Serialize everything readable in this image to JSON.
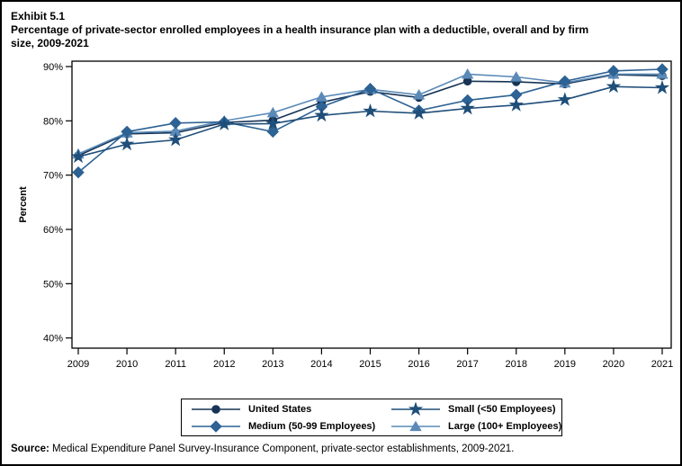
{
  "header": {
    "exhibit_label": "Exhibit 5.1",
    "title_line1": "Percentage of private-sector enrolled employees in a health insurance plan with a deductible, overall and by firm",
    "title_line2": "size, 2009-2021"
  },
  "footer": {
    "source_label": "Source:",
    "source_text": " Medical Expenditure Panel Survey-Insurance Component, private-sector establishments, 2009-2021."
  },
  "chart_data": {
    "type": "line",
    "title": "Percentage of private-sector enrolled employees in a health insurance plan with a deductible, overall and by firm size, 2009-2021",
    "ylabel": "Percent",
    "xlabel": "",
    "grid": false,
    "ylim": [
      40,
      90
    ],
    "y_ticks": [
      {
        "value": 90,
        "label": "90%"
      },
      {
        "value": 80,
        "label": "80%"
      },
      {
        "value": 70,
        "label": "70%"
      },
      {
        "value": 60,
        "label": "60%"
      },
      {
        "value": 50,
        "label": "50%"
      },
      {
        "value": 40,
        "label": "40%"
      }
    ],
    "x": [
      2009,
      2010,
      2011,
      2012,
      2013,
      2014,
      2015,
      2016,
      2017,
      2018,
      2019,
      2020,
      2021
    ],
    "series": [
      {
        "name": "United States",
        "marker": "circle",
        "color": "#173456",
        "values": [
          73.6,
          77.6,
          77.8,
          79.7,
          80.1,
          83.4,
          85.4,
          84.3,
          87.3,
          87.2,
          86.8,
          88.5,
          88.3
        ]
      },
      {
        "name": "Small (<50 Employees)",
        "marker": "star",
        "color": "#1f4e79",
        "values": [
          73.4,
          75.7,
          76.5,
          79.4,
          79.5,
          81.0,
          81.8,
          81.4,
          82.3,
          82.9,
          83.9,
          86.3,
          86.1
        ]
      },
      {
        "name": "Medium (50-99 Employees)",
        "marker": "diamond",
        "color": "#2d6294",
        "values": [
          70.5,
          78.0,
          79.6,
          79.8,
          78.0,
          82.6,
          85.9,
          81.9,
          83.8,
          84.8,
          87.3,
          89.2,
          89.5
        ]
      },
      {
        "name": "Large (100+ Employees)",
        "marker": "triangle",
        "color": "#5b8ab8",
        "values": [
          73.9,
          77.8,
          78.1,
          80.0,
          81.5,
          84.4,
          85.8,
          84.8,
          88.6,
          88.1,
          87.0,
          88.6,
          88.6
        ]
      }
    ],
    "legend": {
      "position": "bottom",
      "columns": 2,
      "order": [
        0,
        1,
        2,
        3
      ]
    }
  }
}
